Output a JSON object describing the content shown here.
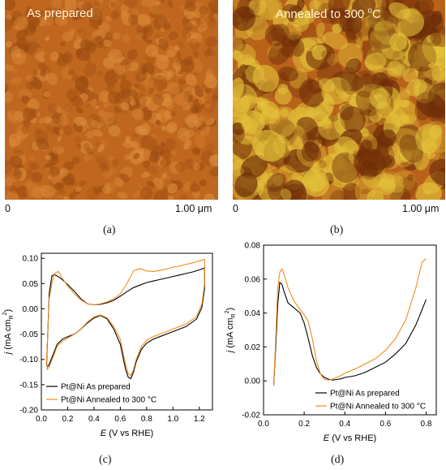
{
  "panels": {
    "a": {
      "title": "As prepared",
      "scale_start": "0",
      "scale_end": "1.00 μm",
      "caption": "(a)",
      "colors": {
        "base": "#c0671f",
        "light": "#d98a3a",
        "dark": "#9c4d12"
      }
    },
    "b": {
      "title_main": "Annealed to 300 ",
      "title_sup": "o",
      "title_end": "C",
      "scale_start": "0",
      "scale_end": "1.00 μm",
      "caption": "(b)",
      "colors": {
        "base": "#b9621a",
        "light": "#e4c23a",
        "dark": "#6e2e08"
      }
    },
    "c": {
      "caption": "(c)"
    },
    "d": {
      "caption": "(d)"
    }
  },
  "chart_data": [
    {
      "type": "line",
      "xlabel_main": "E",
      "xlabel_rest": " (V vs RHE)",
      "ylabel": "j (mA cm R 2)",
      "xlim": [
        0.0,
        1.3
      ],
      "ylim": [
        -0.2,
        0.11
      ],
      "xticks": [
        "0.0",
        "0.2",
        "0.4",
        "0.6",
        "0.8",
        "1.0",
        "1.2"
      ],
      "xtick_values": [
        0.0,
        0.2,
        0.4,
        0.6,
        0.8,
        1.0,
        1.2
      ],
      "yticks": [
        "-0.20",
        "-0.15",
        "-0.10",
        "-0.05",
        "0.00",
        "0.05",
        "0.10"
      ],
      "ytick_values": [
        -0.2,
        -0.15,
        -0.1,
        -0.05,
        0.0,
        0.05,
        0.1
      ],
      "legend_position": "bottom-left",
      "series": [
        {
          "name": "Pt@Ni As prepared",
          "color": "#000000",
          "x": [
            0.04,
            0.06,
            0.08,
            0.1,
            0.14,
            0.2,
            0.25,
            0.3,
            0.35,
            0.4,
            0.45,
            0.5,
            0.55,
            0.6,
            0.65,
            0.7,
            0.75,
            0.8,
            0.85,
            0.9,
            0.95,
            1.0,
            1.05,
            1.1,
            1.15,
            1.2,
            1.24,
            1.24,
            1.22,
            1.18,
            1.1,
            1.0,
            0.9,
            0.85,
            0.8,
            0.76,
            0.72,
            0.7,
            0.68,
            0.66,
            0.64,
            0.62,
            0.6,
            0.55,
            0.5,
            0.45,
            0.4,
            0.35,
            0.3,
            0.25,
            0.2,
            0.16,
            0.12,
            0.09,
            0.06,
            0.045,
            0.04
          ],
          "y": [
            -0.11,
            0.03,
            0.065,
            0.068,
            0.062,
            0.048,
            0.035,
            0.02,
            0.01,
            0.008,
            0.009,
            0.012,
            0.017,
            0.025,
            0.034,
            0.042,
            0.047,
            0.052,
            0.055,
            0.058,
            0.061,
            0.064,
            0.067,
            0.07,
            0.073,
            0.077,
            0.081,
            0.04,
            0.003,
            -0.02,
            -0.035,
            -0.045,
            -0.055,
            -0.06,
            -0.068,
            -0.08,
            -0.105,
            -0.125,
            -0.138,
            -0.135,
            -0.12,
            -0.095,
            -0.07,
            -0.04,
            -0.02,
            -0.013,
            -0.018,
            -0.028,
            -0.04,
            -0.05,
            -0.055,
            -0.06,
            -0.07,
            -0.09,
            -0.11,
            -0.115,
            -0.11
          ]
        },
        {
          "name": "Pt@Ni Annealed to 300 °C",
          "color": "#f28c1c",
          "x": [
            0.04,
            0.06,
            0.08,
            0.1,
            0.13,
            0.16,
            0.2,
            0.25,
            0.3,
            0.35,
            0.4,
            0.45,
            0.5,
            0.55,
            0.6,
            0.65,
            0.7,
            0.75,
            0.8,
            0.85,
            0.9,
            0.95,
            1.0,
            1.05,
            1.1,
            1.15,
            1.2,
            1.24,
            1.24,
            1.22,
            1.18,
            1.1,
            1.0,
            0.9,
            0.85,
            0.8,
            0.76,
            0.72,
            0.7,
            0.68,
            0.66,
            0.64,
            0.62,
            0.6,
            0.55,
            0.5,
            0.45,
            0.4,
            0.35,
            0.3,
            0.25,
            0.2,
            0.16,
            0.12,
            0.09,
            0.06,
            0.045,
            0.04
          ],
          "y": [
            -0.1,
            0.02,
            0.05,
            0.07,
            0.074,
            0.06,
            0.045,
            0.03,
            0.018,
            0.01,
            0.008,
            0.01,
            0.014,
            0.02,
            0.03,
            0.05,
            0.075,
            0.08,
            0.075,
            0.074,
            0.076,
            0.079,
            0.082,
            0.085,
            0.088,
            0.091,
            0.095,
            0.098,
            0.05,
            0.01,
            -0.015,
            -0.03,
            -0.04,
            -0.05,
            -0.055,
            -0.062,
            -0.075,
            -0.1,
            -0.12,
            -0.132,
            -0.128,
            -0.11,
            -0.085,
            -0.06,
            -0.035,
            -0.018,
            -0.012,
            -0.016,
            -0.026,
            -0.04,
            -0.05,
            -0.058,
            -0.064,
            -0.074,
            -0.095,
            -0.115,
            -0.12,
            -0.1
          ]
        }
      ]
    },
    {
      "type": "line",
      "xlabel_main": "E",
      "xlabel_rest": " (V vs RHE)",
      "ylabel": "j (mA cm R 2)",
      "xlim": [
        0.0,
        0.85
      ],
      "ylim": [
        -0.02,
        0.08
      ],
      "xticks": [
        "0.0",
        "0.2",
        "0.4",
        "0.6",
        "0.8"
      ],
      "xtick_values": [
        0.0,
        0.2,
        0.4,
        0.6,
        0.8
      ],
      "yticks": [
        "-0.02",
        "0.00",
        "0.02",
        "0.04",
        "0.06",
        "0.08"
      ],
      "ytick_values": [
        -0.02,
        0.0,
        0.02,
        0.04,
        0.06,
        0.08
      ],
      "legend_position": "bottom-right",
      "series": [
        {
          "name": "Pt@Ni As prepared",
          "color": "#000000",
          "x": [
            0.05,
            0.06,
            0.07,
            0.08,
            0.09,
            0.1,
            0.12,
            0.15,
            0.18,
            0.2,
            0.22,
            0.24,
            0.26,
            0.28,
            0.3,
            0.32,
            0.34,
            0.36,
            0.38,
            0.4,
            0.45,
            0.5,
            0.55,
            0.6,
            0.65,
            0.7,
            0.75,
            0.8
          ],
          "y": [
            -0.003,
            0.02,
            0.045,
            0.058,
            0.057,
            0.053,
            0.046,
            0.043,
            0.04,
            0.034,
            0.025,
            0.015,
            0.008,
            0.004,
            0.002,
            0.001,
            0.0005,
            0.0008,
            0.0012,
            0.002,
            0.003,
            0.005,
            0.008,
            0.011,
            0.016,
            0.022,
            0.033,
            0.048
          ]
        },
        {
          "name": "Pt@Ni Annealed to 300 °C",
          "color": "#f28c1c",
          "x": [
            0.05,
            0.06,
            0.07,
            0.08,
            0.09,
            0.1,
            0.12,
            0.15,
            0.18,
            0.2,
            0.22,
            0.24,
            0.26,
            0.28,
            0.3,
            0.32,
            0.34,
            0.36,
            0.38,
            0.4,
            0.45,
            0.5,
            0.55,
            0.6,
            0.65,
            0.7,
            0.75,
            0.78,
            0.8
          ],
          "y": [
            -0.003,
            0.025,
            0.055,
            0.064,
            0.066,
            0.063,
            0.055,
            0.047,
            0.042,
            0.039,
            0.035,
            0.025,
            0.012,
            0.004,
            0.0008,
            0.0005,
            0.001,
            0.002,
            0.003,
            0.0045,
            0.007,
            0.01,
            0.013,
            0.018,
            0.025,
            0.036,
            0.055,
            0.07,
            0.072
          ]
        }
      ]
    }
  ]
}
